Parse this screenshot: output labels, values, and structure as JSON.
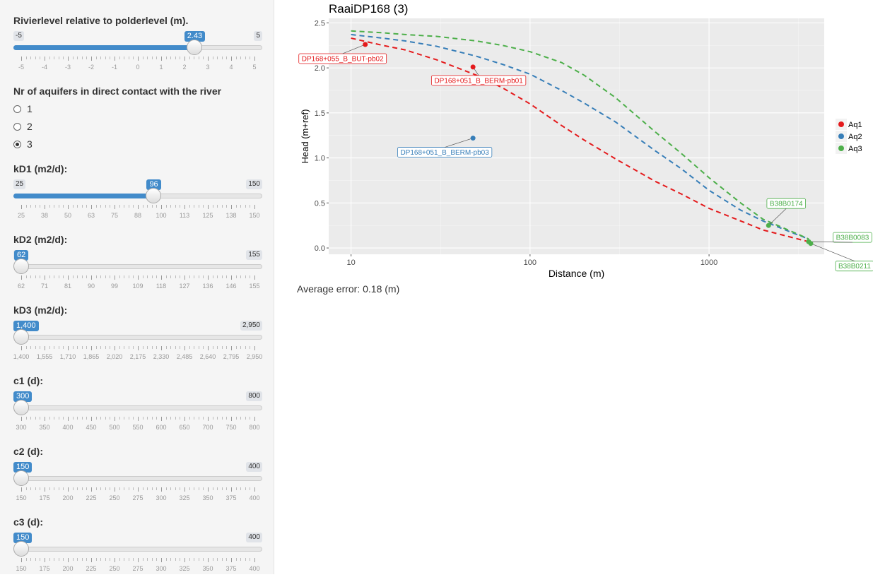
{
  "sidebar": {
    "river": {
      "label": "Rivierlevel relative to polderlevel (m).",
      "min_label": "-5",
      "max_label": "5",
      "value_label": "2.43",
      "min": -5,
      "max": 5,
      "value": 2.43,
      "ticks": [
        "-5",
        "-4",
        "-3",
        "-2",
        "-1",
        "0",
        "1",
        "2",
        "3",
        "4",
        "5"
      ]
    },
    "aquifers": {
      "label": "Nr of aquifers in direct contact with the river",
      "options": [
        "1",
        "2",
        "3"
      ],
      "selected": "3"
    },
    "kd1": {
      "label": "kD1 (m2/d):",
      "min_label": "25",
      "max_label": "150",
      "value_label": "96",
      "min": 25,
      "max": 150,
      "value": 96,
      "ticks": [
        "25",
        "38",
        "50",
        "63",
        "75",
        "88",
        "100",
        "113",
        "125",
        "138",
        "150"
      ]
    },
    "kd2": {
      "label": "kD2 (m2/d):",
      "min_label": "62",
      "max_label": "155",
      "value_label": "62",
      "min": 62,
      "max": 155,
      "value": 62,
      "ticks": [
        "62",
        "71",
        "81",
        "90",
        "99",
        "109",
        "118",
        "127",
        "136",
        "146",
        "155"
      ]
    },
    "kd3": {
      "label": "kD3 (m2/d):",
      "min_label": "1,400",
      "max_label": "2,950",
      "value_label": "1,400",
      "min": 1400,
      "max": 2950,
      "value": 1400,
      "ticks": [
        "1,400",
        "1,555",
        "1,710",
        "1,865",
        "2,020",
        "2,175",
        "2,330",
        "2,485",
        "2,640",
        "2,795",
        "2,950"
      ]
    },
    "c1": {
      "label": "c1 (d):",
      "min_label": "300",
      "max_label": "800",
      "value_label": "300",
      "min": 300,
      "max": 800,
      "value": 300,
      "ticks": [
        "300",
        "350",
        "400",
        "450",
        "500",
        "550",
        "600",
        "650",
        "700",
        "750",
        "800"
      ]
    },
    "c2": {
      "label": "c2 (d):",
      "min_label": "150",
      "max_label": "400",
      "value_label": "150",
      "min": 150,
      "max": 400,
      "value": 150,
      "ticks": [
        "150",
        "175",
        "200",
        "225",
        "250",
        "275",
        "300",
        "325",
        "350",
        "375",
        "400"
      ]
    },
    "c3": {
      "label": "c3 (d):",
      "min_label": "150",
      "max_label": "400",
      "value_label": "150",
      "min": 150,
      "max": 400,
      "value": 150,
      "ticks": [
        "150",
        "175",
        "200",
        "225",
        "250",
        "275",
        "300",
        "325",
        "350",
        "375",
        "400"
      ]
    }
  },
  "main": {
    "average_error": "Average error: 0.18 (m)"
  },
  "chart_data": {
    "type": "line",
    "title": "RaaiDP168 (3)",
    "xlabel": "Distance (m)",
    "ylabel": "Head (m+ref)",
    "x_scale": "log",
    "xlim": [
      7.5,
      4400
    ],
    "ylim": [
      -0.07,
      2.55
    ],
    "x_ticks": [
      "10",
      "100",
      "1000"
    ],
    "y_ticks": [
      "0.0",
      "0.5",
      "1.0",
      "1.5",
      "2.0",
      "2.5"
    ],
    "grid": true,
    "legend_position": "right",
    "colors": {
      "Aq1": "#e41a1c",
      "Aq2": "#377eb8",
      "Aq3": "#4daf4a"
    },
    "series": [
      {
        "name": "Aq1",
        "style": "dashed",
        "x": [
          10,
          15,
          20,
          30,
          50,
          70,
          100,
          150,
          200,
          300,
          500,
          700,
          1000,
          1500,
          2000,
          3000,
          3600
        ],
        "y": [
          2.33,
          2.25,
          2.2,
          2.09,
          1.92,
          1.78,
          1.6,
          1.36,
          1.2,
          0.99,
          0.74,
          0.6,
          0.44,
          0.3,
          0.2,
          0.11,
          0.07
        ]
      },
      {
        "name": "Aq2",
        "style": "dashed",
        "x": [
          10,
          15,
          20,
          30,
          50,
          70,
          100,
          150,
          200,
          300,
          500,
          700,
          1000,
          1500,
          2000,
          3000,
          3600
        ],
        "y": [
          2.37,
          2.33,
          2.3,
          2.24,
          2.13,
          2.04,
          1.93,
          1.75,
          1.61,
          1.4,
          1.08,
          0.88,
          0.64,
          0.42,
          0.3,
          0.16,
          0.1
        ]
      },
      {
        "name": "Aq3",
        "style": "dashed",
        "x": [
          10,
          15,
          20,
          30,
          50,
          70,
          100,
          150,
          200,
          300,
          500,
          700,
          1000,
          1500,
          2000,
          3000,
          3600
        ],
        "y": [
          2.41,
          2.39,
          2.37,
          2.35,
          2.3,
          2.25,
          2.18,
          2.06,
          1.92,
          1.67,
          1.29,
          1.05,
          0.78,
          0.5,
          0.32,
          0.17,
          0.1
        ]
      }
    ],
    "points": [
      {
        "series": "Aq1",
        "x": 12,
        "y": 2.26,
        "label": "DP168+055_B_BUT-pb02"
      },
      {
        "series": "Aq1",
        "x": 48,
        "y": 2.01,
        "label": "DP168+051_B_BERM-pb01"
      },
      {
        "series": "Aq2",
        "x": 48,
        "y": 1.22,
        "label": "DP168+051_B_BERM-pb03"
      },
      {
        "series": "Aq3",
        "x": 2150,
        "y": 0.25,
        "label": "B38B0174"
      },
      {
        "series": "Aq3",
        "x": 3600,
        "y": 0.07,
        "label": "B38B0083"
      },
      {
        "series": "Aq3",
        "x": 3700,
        "y": 0.05,
        "label": "B38B0211"
      }
    ]
  }
}
